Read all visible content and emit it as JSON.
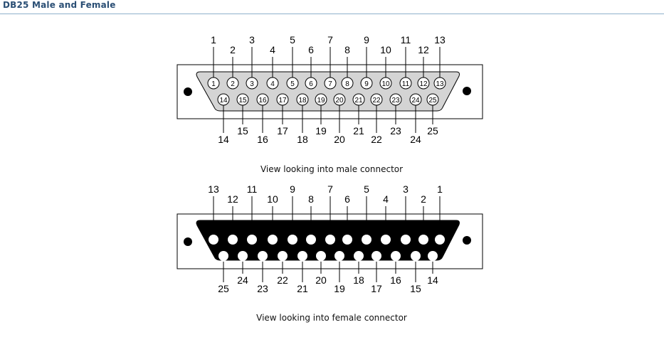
{
  "header": {
    "title": "DB25 Male and Female"
  },
  "male": {
    "caption": "View looking into male connector",
    "top_pins": [
      "1",
      "2",
      "3",
      "4",
      "5",
      "6",
      "7",
      "8",
      "9",
      "10",
      "11",
      "12",
      "13"
    ],
    "bottom_pins": [
      "14",
      "15",
      "16",
      "17",
      "18",
      "19",
      "20",
      "21",
      "22",
      "23",
      "24",
      "25"
    ]
  },
  "female": {
    "caption": "View looking into female connector",
    "top_pins": [
      "13",
      "12",
      "11",
      "10",
      "9",
      "8",
      "7",
      "6",
      "5",
      "4",
      "3",
      "2",
      "1"
    ],
    "bottom_pins": [
      "25",
      "24",
      "23",
      "22",
      "21",
      "20",
      "19",
      "18",
      "17",
      "16",
      "15",
      "14"
    ]
  },
  "colors": {
    "header_text": "#2a4e74",
    "header_rule": "#8fb1cc",
    "shell_male": "#d4d4d4",
    "shell_female": "#000000"
  }
}
